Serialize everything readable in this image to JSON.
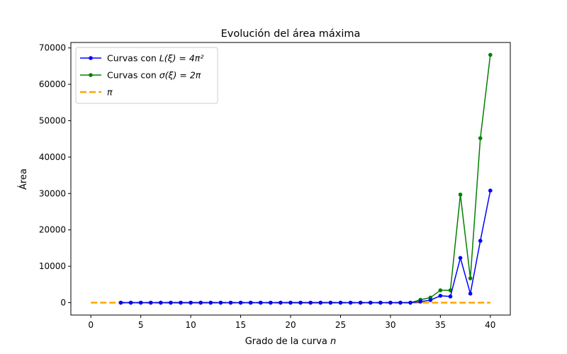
{
  "chart_data": {
    "type": "line",
    "title": "Evolución del área máxima",
    "xlabel": "Grado de la curva",
    "xlabel_var": "n",
    "ylabel": "Área",
    "xlim": [
      -2,
      42
    ],
    "ylim": [
      -3400,
      71500
    ],
    "xticks": [
      0,
      5,
      10,
      15,
      20,
      25,
      30,
      35,
      40
    ],
    "yticks": [
      0,
      10000,
      20000,
      30000,
      40000,
      50000,
      60000,
      70000
    ],
    "grid": false,
    "legend_position": "top-left",
    "series": [
      {
        "name": "Curvas con",
        "label_math": "L(ξ) = 4π²",
        "color": "#0000ff",
        "linestyle": "solid",
        "marker": "circle",
        "x": [
          3,
          4,
          5,
          6,
          7,
          8,
          9,
          10,
          11,
          12,
          13,
          14,
          15,
          16,
          17,
          18,
          19,
          20,
          21,
          22,
          23,
          24,
          25,
          26,
          27,
          28,
          29,
          30,
          31,
          32,
          33,
          34,
          35,
          36,
          37,
          38,
          39,
          40
        ],
        "y": [
          0,
          0,
          0,
          0,
          0,
          0,
          0,
          0,
          0,
          0,
          0,
          0,
          0,
          0,
          0,
          0,
          0,
          0,
          0,
          0,
          0,
          0,
          0,
          0,
          0,
          0,
          0,
          0,
          0,
          0,
          300,
          700,
          1900,
          1700,
          12300,
          2500,
          17000,
          30800
        ]
      },
      {
        "name": "Curvas con",
        "label_math": "σ(ξ) = 2π",
        "color": "#008000",
        "linestyle": "solid",
        "marker": "circle",
        "x": [
          3,
          4,
          5,
          6,
          7,
          8,
          9,
          10,
          11,
          12,
          13,
          14,
          15,
          16,
          17,
          18,
          19,
          20,
          21,
          22,
          23,
          24,
          25,
          26,
          27,
          28,
          29,
          30,
          31,
          32,
          33,
          34,
          35,
          36,
          37,
          38,
          39,
          40
        ],
        "y": [
          0,
          0,
          0,
          0,
          0,
          0,
          0,
          0,
          0,
          0,
          0,
          0,
          0,
          0,
          0,
          0,
          0,
          0,
          0,
          0,
          0,
          0,
          0,
          0,
          0,
          0,
          0,
          0,
          0,
          0,
          800,
          1400,
          3400,
          3400,
          29700,
          6700,
          45200,
          68100
        ]
      },
      {
        "name": "",
        "label_math": "π",
        "color": "#ffa500",
        "linestyle": "dashed",
        "marker": "none",
        "x": [
          0,
          40
        ],
        "y": [
          3.14159,
          3.14159
        ]
      }
    ]
  }
}
